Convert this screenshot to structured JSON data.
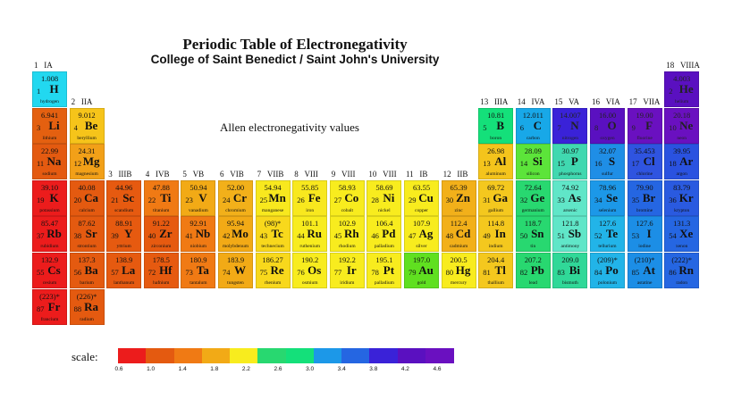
{
  "title": "Periodic Table of Electronegativity",
  "subtitle": "College of Saint Benedict / Saint John's University",
  "note": "Allen electronegativity values",
  "scale_label": "scale:",
  "chart_data": {
    "type": "table",
    "title": "Periodic Table of Electronegativity",
    "group_labels": [
      {
        "number": "1",
        "name": "IA"
      },
      {
        "number": "2",
        "name": "IIA"
      },
      {
        "number": "3",
        "name": "IIIB"
      },
      {
        "number": "4",
        "name": "IVB"
      },
      {
        "number": "5",
        "name": "VB"
      },
      {
        "number": "6",
        "name": "VIB"
      },
      {
        "number": "7",
        "name": "VIIB"
      },
      {
        "number": "8",
        "name": "VIII"
      },
      {
        "number": "9",
        "name": "VIII"
      },
      {
        "number": "10",
        "name": "VIII"
      },
      {
        "number": "11",
        "name": "IB"
      },
      {
        "number": "12",
        "name": "IIB"
      },
      {
        "number": "13",
        "name": "IIIA"
      },
      {
        "number": "14",
        "name": "IVA"
      },
      {
        "number": "15",
        "name": "VA"
      },
      {
        "number": "16",
        "name": "VIA"
      },
      {
        "number": "17",
        "name": "VIIA"
      },
      {
        "number": "18",
        "name": "VIIIA"
      }
    ],
    "elements": [
      {
        "z": 1,
        "symbol": "H",
        "name": "hydrogen",
        "mass": "1.008",
        "row": 1,
        "col": 1,
        "color": "#22d8f0"
      },
      {
        "z": 2,
        "symbol": "He",
        "name": "helium",
        "mass": "4.003",
        "row": 1,
        "col": 18,
        "color": "#5a10c0"
      },
      {
        "z": 3,
        "symbol": "Li",
        "name": "lithium",
        "mass": "6.941",
        "row": 2,
        "col": 1,
        "color": "#e46010"
      },
      {
        "z": 4,
        "symbol": "Be",
        "name": "beryllium",
        "mass": "9.012",
        "row": 2,
        "col": 2,
        "color": "#f6c41a"
      },
      {
        "z": 5,
        "symbol": "B",
        "name": "boron",
        "mass": "10.81",
        "row": 2,
        "col": 13,
        "color": "#14e07a"
      },
      {
        "z": 6,
        "symbol": "C",
        "name": "carbon",
        "mass": "12.011",
        "row": 2,
        "col": 14,
        "color": "#18a8e8"
      },
      {
        "z": 7,
        "symbol": "N",
        "name": "nitrogen",
        "mass": "14.007",
        "row": 2,
        "col": 15,
        "color": "#3a22d8"
      },
      {
        "z": 8,
        "symbol": "O",
        "name": "oxygen",
        "mass": "16.00",
        "row": 2,
        "col": 16,
        "color": "#5a10c0"
      },
      {
        "z": 9,
        "symbol": "F",
        "name": "fluorine",
        "mass": "19.00",
        "row": 2,
        "col": 17,
        "color": "#6a10c0"
      },
      {
        "z": 10,
        "symbol": "Ne",
        "name": "neon",
        "mass": "20.18",
        "row": 2,
        "col": 18,
        "color": "#6a10c0"
      },
      {
        "z": 11,
        "symbol": "Na",
        "name": "sodium",
        "mass": "22.99",
        "row": 3,
        "col": 1,
        "color": "#e45a10"
      },
      {
        "z": 12,
        "symbol": "Mg",
        "name": "magnesium",
        "mass": "24.31",
        "row": 3,
        "col": 2,
        "color": "#f2a018"
      },
      {
        "z": 13,
        "symbol": "Al",
        "name": "aluminum",
        "mass": "26.98",
        "row": 3,
        "col": 13,
        "color": "#f4c41c"
      },
      {
        "z": 14,
        "symbol": "Si",
        "name": "silicon",
        "mass": "28.09",
        "row": 3,
        "col": 14,
        "color": "#5ce43a"
      },
      {
        "z": 15,
        "symbol": "P",
        "name": "phosphorus",
        "mass": "30.97",
        "row": 3,
        "col": 15,
        "color": "#40d8b0"
      },
      {
        "z": 16,
        "symbol": "S",
        "name": "sulfur",
        "mass": "32.07",
        "row": 3,
        "col": 16,
        "color": "#1f8ee6"
      },
      {
        "z": 17,
        "symbol": "Cl",
        "name": "chlorine",
        "mass": "35.453",
        "row": 3,
        "col": 17,
        "color": "#2f54e0"
      },
      {
        "z": 18,
        "symbol": "Ar",
        "name": "argon",
        "mass": "39.95",
        "row": 3,
        "col": 18,
        "color": "#2a52e0"
      },
      {
        "z": 19,
        "symbol": "K",
        "name": "potassium",
        "mass": "39.10",
        "row": 4,
        "col": 1,
        "color": "#ec1c1c"
      },
      {
        "z": 20,
        "symbol": "Ca",
        "name": "calcium",
        "mass": "40.08",
        "row": 4,
        "col": 2,
        "color": "#e45a10"
      },
      {
        "z": 21,
        "symbol": "Sc",
        "name": "scandium",
        "mass": "44.96",
        "row": 4,
        "col": 3,
        "color": "#e65a10"
      },
      {
        "z": 22,
        "symbol": "Ti",
        "name": "titanium",
        "mass": "47.88",
        "row": 4,
        "col": 4,
        "color": "#f07a14"
      },
      {
        "z": 23,
        "symbol": "V",
        "name": "vanadium",
        "mass": "50.94",
        "row": 4,
        "col": 5,
        "color": "#f2aa16"
      },
      {
        "z": 24,
        "symbol": "Cr",
        "name": "chromium",
        "mass": "52.00",
        "row": 4,
        "col": 6,
        "color": "#f2b01a"
      },
      {
        "z": 25,
        "symbol": "Mn",
        "name": "manganese",
        "mass": "54.94",
        "row": 4,
        "col": 7,
        "color": "#f8e81e"
      },
      {
        "z": 26,
        "symbol": "Fe",
        "name": "iron",
        "mass": "55.85",
        "row": 4,
        "col": 8,
        "color": "#f8e81e"
      },
      {
        "z": 27,
        "symbol": "Co",
        "name": "cobalt",
        "mass": "58.93",
        "row": 4,
        "col": 9,
        "color": "#f8ec1e"
      },
      {
        "z": 28,
        "symbol": "Ni",
        "name": "nickel",
        "mass": "58.69",
        "row": 4,
        "col": 10,
        "color": "#f8ec1e"
      },
      {
        "z": 29,
        "symbol": "Cu",
        "name": "copper",
        "mass": "63.55",
        "row": 4,
        "col": 11,
        "color": "#f8ec1e"
      },
      {
        "z": 30,
        "symbol": "Zn",
        "name": "zinc",
        "mass": "65.39",
        "row": 4,
        "col": 12,
        "color": "#f2b01a"
      },
      {
        "z": 31,
        "symbol": "Ga",
        "name": "gallium",
        "mass": "69.72",
        "row": 4,
        "col": 13,
        "color": "#f4c81e"
      },
      {
        "z": 32,
        "symbol": "Ge",
        "name": "germanium",
        "mass": "72.64",
        "row": 4,
        "col": 14,
        "color": "#28d870"
      },
      {
        "z": 33,
        "symbol": "As",
        "name": "arsenic",
        "mass": "74.92",
        "row": 4,
        "col": 15,
        "color": "#60e6c8"
      },
      {
        "z": 34,
        "symbol": "Se",
        "name": "selenium",
        "mass": "78.96",
        "row": 4,
        "col": 16,
        "color": "#1c98e8"
      },
      {
        "z": 35,
        "symbol": "Br",
        "name": "bromine",
        "mass": "79.90",
        "row": 4,
        "col": 17,
        "color": "#2566e2"
      },
      {
        "z": 36,
        "symbol": "Kr",
        "name": "krypton",
        "mass": "83.79",
        "row": 4,
        "col": 18,
        "color": "#2a5ae0"
      },
      {
        "z": 37,
        "symbol": "Rb",
        "name": "rubidium",
        "mass": "85.47",
        "row": 5,
        "col": 1,
        "color": "#ec1c1c"
      },
      {
        "z": 38,
        "symbol": "Sr",
        "name": "strontium",
        "mass": "87.62",
        "row": 5,
        "col": 2,
        "color": "#e45a10"
      },
      {
        "z": 39,
        "symbol": "Y",
        "name": "yttrium",
        "mass": "88.91",
        "row": 5,
        "col": 3,
        "color": "#e65a10"
      },
      {
        "z": 40,
        "symbol": "Zr",
        "name": "zirconium",
        "mass": "91.22",
        "row": 5,
        "col": 4,
        "color": "#e65a10"
      },
      {
        "z": 41,
        "symbol": "Nb",
        "name": "niobium",
        "mass": "92.91",
        "row": 5,
        "col": 5,
        "color": "#f07a14"
      },
      {
        "z": 42,
        "symbol": "Mo",
        "name": "molybdenum",
        "mass": "95.94",
        "row": 5,
        "col": 6,
        "color": "#f2aa16"
      },
      {
        "z": 43,
        "symbol": "Tc",
        "name": "technecium",
        "mass": "(98)*",
        "row": 5,
        "col": 7,
        "color": "#f8d81c"
      },
      {
        "z": 44,
        "symbol": "Ru",
        "name": "ruthenium",
        "mass": "101.1",
        "row": 5,
        "col": 8,
        "color": "#f8ec1e"
      },
      {
        "z": 45,
        "symbol": "Rh",
        "name": "rhodium",
        "mass": "102.9",
        "row": 5,
        "col": 9,
        "color": "#f8ec1e"
      },
      {
        "z": 46,
        "symbol": "Pd",
        "name": "palladium",
        "mass": "106.4",
        "row": 5,
        "col": 10,
        "color": "#f8ec1e"
      },
      {
        "z": 47,
        "symbol": "Ag",
        "name": "silver",
        "mass": "107.9",
        "row": 5,
        "col": 11,
        "color": "#f8ec1e"
      },
      {
        "z": 48,
        "symbol": "Cd",
        "name": "cadmium",
        "mass": "112.4",
        "row": 5,
        "col": 12,
        "color": "#f2b01a"
      },
      {
        "z": 49,
        "symbol": "In",
        "name": "indium",
        "mass": "114.8",
        "row": 5,
        "col": 13,
        "color": "#f4c81e"
      },
      {
        "z": 50,
        "symbol": "Sn",
        "name": "tin",
        "mass": "118.7",
        "row": 5,
        "col": 14,
        "color": "#28d870"
      },
      {
        "z": 51,
        "symbol": "Sb",
        "name": "antimony",
        "mass": "121.8",
        "row": 5,
        "col": 15,
        "color": "#60e6c8"
      },
      {
        "z": 52,
        "symbol": "Te",
        "name": "tellurium",
        "mass": "127.6",
        "row": 5,
        "col": 16,
        "color": "#22b4e8"
      },
      {
        "z": 53,
        "symbol": "I",
        "name": "iodine",
        "mass": "127.6",
        "row": 5,
        "col": 17,
        "color": "#1c8ee6"
      },
      {
        "z": 54,
        "symbol": "Xe",
        "name": "xenon",
        "mass": "131.3",
        "row": 5,
        "col": 18,
        "color": "#2566e2"
      },
      {
        "z": 55,
        "symbol": "Cs",
        "name": "cesium",
        "mass": "132.9",
        "row": 6,
        "col": 1,
        "color": "#ec1c1c"
      },
      {
        "z": 56,
        "symbol": "Ba",
        "name": "barium",
        "mass": "137.3",
        "row": 6,
        "col": 2,
        "color": "#e45a10"
      },
      {
        "z": 57,
        "symbol": "La",
        "name": "lanthanum",
        "mass": "138.9",
        "row": 6,
        "col": 3,
        "color": "#e65a10"
      },
      {
        "z": 72,
        "symbol": "Hf",
        "name": "hafnium",
        "mass": "178.5",
        "row": 6,
        "col": 4,
        "color": "#e65a10"
      },
      {
        "z": 73,
        "symbol": "Ta",
        "name": "tantalum",
        "mass": "180.9",
        "row": 6,
        "col": 5,
        "color": "#f07a14"
      },
      {
        "z": 74,
        "symbol": "W",
        "name": "tungsten",
        "mass": "183.9",
        "row": 6,
        "col": 6,
        "color": "#f2aa16"
      },
      {
        "z": 75,
        "symbol": "Re",
        "name": "rhenium",
        "mass": "186.27",
        "row": 6,
        "col": 7,
        "color": "#f8d81c"
      },
      {
        "z": 76,
        "symbol": "Os",
        "name": "osmium",
        "mass": "190.2",
        "row": 6,
        "col": 8,
        "color": "#f8ec1e"
      },
      {
        "z": 77,
        "symbol": "Ir",
        "name": "iridium",
        "mass": "192.2",
        "row": 6,
        "col": 9,
        "color": "#f8ec1e"
      },
      {
        "z": 78,
        "symbol": "Pt",
        "name": "palladium",
        "mass": "195.1",
        "row": 6,
        "col": 10,
        "color": "#f8ec1e"
      },
      {
        "z": 79,
        "symbol": "Au",
        "name": "gold",
        "mass": "197.0",
        "row": 6,
        "col": 11,
        "color": "#60e020"
      },
      {
        "z": 80,
        "symbol": "Hg",
        "name": "mercury",
        "mass": "200.5",
        "row": 6,
        "col": 12,
        "color": "#f8ec1e"
      },
      {
        "z": 81,
        "symbol": "Tl",
        "name": "thallium",
        "mass": "204.4",
        "row": 6,
        "col": 13,
        "color": "#f4c81e"
      },
      {
        "z": 82,
        "symbol": "Pb",
        "name": "lead",
        "mass": "207.2",
        "row": 6,
        "col": 14,
        "color": "#28d870"
      },
      {
        "z": 83,
        "symbol": "Bi",
        "name": "bismuth",
        "mass": "209.0",
        "row": 6,
        "col": 15,
        "color": "#30d898"
      },
      {
        "z": 84,
        "symbol": "Po",
        "name": "polonium",
        "mass": "(209)*",
        "row": 6,
        "col": 16,
        "color": "#22b4e8"
      },
      {
        "z": 85,
        "symbol": "At",
        "name": "astatine",
        "mass": "(210)*",
        "row": 6,
        "col": 17,
        "color": "#1c8ee6"
      },
      {
        "z": 86,
        "symbol": "Rn",
        "name": "radon",
        "mass": "(222)*",
        "row": 6,
        "col": 18,
        "color": "#2566e2"
      },
      {
        "z": 87,
        "symbol": "Fr",
        "name": "francium",
        "mass": "(223)*",
        "row": 7,
        "col": 1,
        "color": "#ec1c1c"
      },
      {
        "z": 88,
        "symbol": "Ra",
        "name": "radium",
        "mass": "(226)*",
        "row": 7,
        "col": 2,
        "color": "#e45a10"
      }
    ],
    "scale": {
      "ticks": [
        "0.6",
        "1.0",
        "1.4",
        "1.8",
        "2.2",
        "2.6",
        "3.0",
        "3.4",
        "3.8",
        "4.2",
        "4.6"
      ],
      "colors": [
        "#ec1c1c",
        "#e45a10",
        "#f07a14",
        "#f2aa16",
        "#f8ec1e",
        "#28d870",
        "#14e07a",
        "#1c98e8",
        "#2566e2",
        "#3a22d8",
        "#5a10c0",
        "#6a10c0"
      ]
    }
  }
}
